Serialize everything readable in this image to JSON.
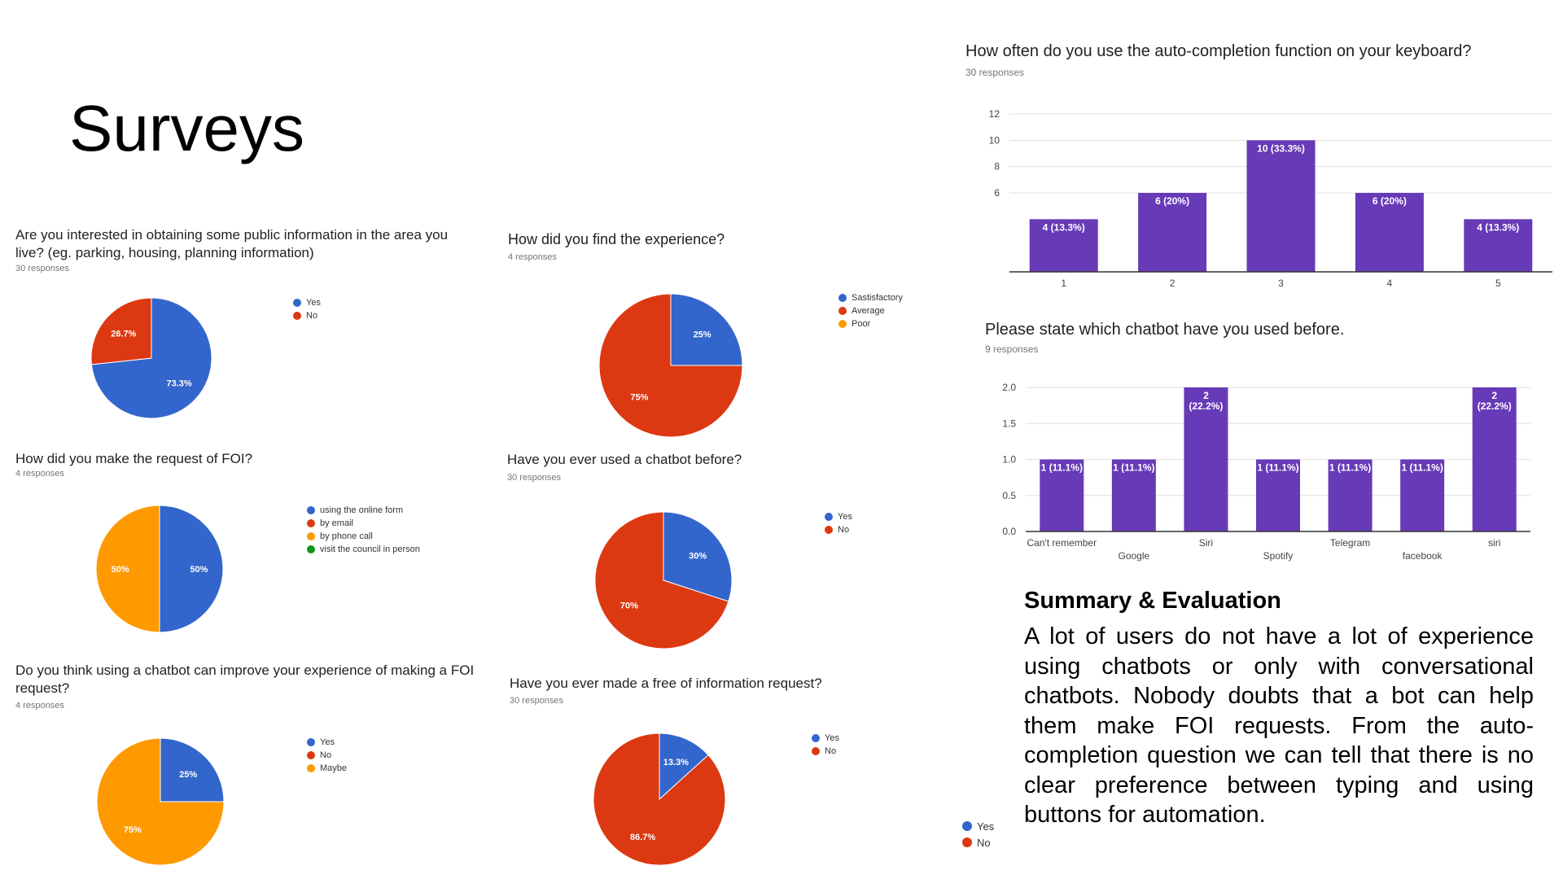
{
  "slide": {
    "title": "Surveys",
    "summary_heading": "Summary & Evaluation",
    "summary_text": "A lot of users do not have a lot of experience using chatbots or only with conversational chatbots. Nobody doubts that a bot can help them make FOI requests. From the auto-completion question we can tell that there is no clear preference between typing and using buttons for automation.",
    "extra_legend": [
      {
        "label": "Yes",
        "color": "#3366cc"
      },
      {
        "label": "No",
        "color": "#dc3912"
      }
    ]
  },
  "chart_data": [
    {
      "type": "pie",
      "title": "Are you interested in obtaining some public information in the area you live? (eg. parking, housing, planning information)",
      "responses": "30 responses",
      "labels": [
        "Yes",
        "No"
      ],
      "values": [
        73.3,
        26.7
      ],
      "slice_labels": [
        "73.3%",
        "26.7%"
      ],
      "colors": [
        "#3366cc",
        "#dc3912"
      ],
      "legend_position": "right"
    },
    {
      "type": "pie",
      "title": "How did you find the experience?",
      "responses": "4 responses",
      "labels": [
        "Sastisfactory",
        "Average",
        "Poor"
      ],
      "values": [
        25,
        75,
        0
      ],
      "slice_labels": [
        "25%",
        "75%",
        ""
      ],
      "colors": [
        "#3366cc",
        "#dc3912",
        "#ff9900"
      ],
      "legend_position": "right"
    },
    {
      "type": "pie",
      "title": "How did you make the request of FOI?",
      "responses": "4 responses",
      "labels": [
        "using the online form",
        "by email",
        "by phone call",
        "visit the council in person"
      ],
      "values": [
        50,
        0,
        50,
        0
      ],
      "slice_labels": [
        "50%",
        "",
        "50%",
        ""
      ],
      "colors": [
        "#3366cc",
        "#dc3912",
        "#ff9900",
        "#109618"
      ],
      "legend_position": "right"
    },
    {
      "type": "pie",
      "title": "Have you ever used a chatbot before?",
      "responses": "30 responses",
      "labels": [
        "Yes",
        "No"
      ],
      "values": [
        30,
        70
      ],
      "slice_labels": [
        "30%",
        "70%"
      ],
      "colors": [
        "#3366cc",
        "#dc3912"
      ],
      "legend_position": "right"
    },
    {
      "type": "pie",
      "title": "Do you think using a chatbot can improve your experience of making a FOI request?",
      "responses": "4 responses",
      "labels": [
        "Yes",
        "No",
        "Maybe"
      ],
      "values": [
        25,
        0,
        75
      ],
      "slice_labels": [
        "25%",
        "",
        "75%"
      ],
      "colors": [
        "#3366cc",
        "#dc3912",
        "#ff9900"
      ],
      "legend_position": "right"
    },
    {
      "type": "pie",
      "title": "Have you ever made a free of information request?",
      "responses": "30 responses",
      "labels": [
        "Yes",
        "No"
      ],
      "values": [
        13.3,
        86.7
      ],
      "slice_labels": [
        "13.3%",
        "86.7%"
      ],
      "colors": [
        "#3366cc",
        "#dc3912"
      ],
      "legend_position": "right"
    },
    {
      "type": "bar",
      "title": "How often do you use the auto-completion function on your keyboard?",
      "responses": "30 responses",
      "categories": [
        "1",
        "2",
        "3",
        "4",
        "5"
      ],
      "values": [
        4,
        6,
        10,
        6,
        4
      ],
      "bar_labels": [
        "4 (13.3%)",
        "6 (20%)",
        "10 (33.3%)",
        "6 (20%)",
        "4 (13.3%)"
      ],
      "yticks": [
        "6",
        "8",
        "10",
        "12"
      ],
      "ylim": [
        0,
        12
      ],
      "color": "#673ab7",
      "grid": true
    },
    {
      "type": "bar",
      "title": "Please state which chatbot have you used before.",
      "responses": "9 responses",
      "categories": [
        "Can't remember",
        "Google",
        "Siri",
        "Spotify",
        "Telegram",
        "facebook",
        "siri"
      ],
      "values": [
        1,
        1,
        2,
        1,
        1,
        1,
        2
      ],
      "bar_labels": [
        [
          "1 (11.1%)"
        ],
        [
          "1 (11.1%)"
        ],
        [
          "2",
          "(22.2%)"
        ],
        [
          "1 (11.1%)"
        ],
        [
          "1 (11.1%)"
        ],
        [
          "1 (11.1%)"
        ],
        [
          "2",
          "(22.2%)"
        ]
      ],
      "yticks": [
        "0.0",
        "0.5",
        "1.0",
        "1.5",
        "2.0"
      ],
      "ylim": [
        0,
        2
      ],
      "color": "#673ab7",
      "grid": true
    }
  ]
}
